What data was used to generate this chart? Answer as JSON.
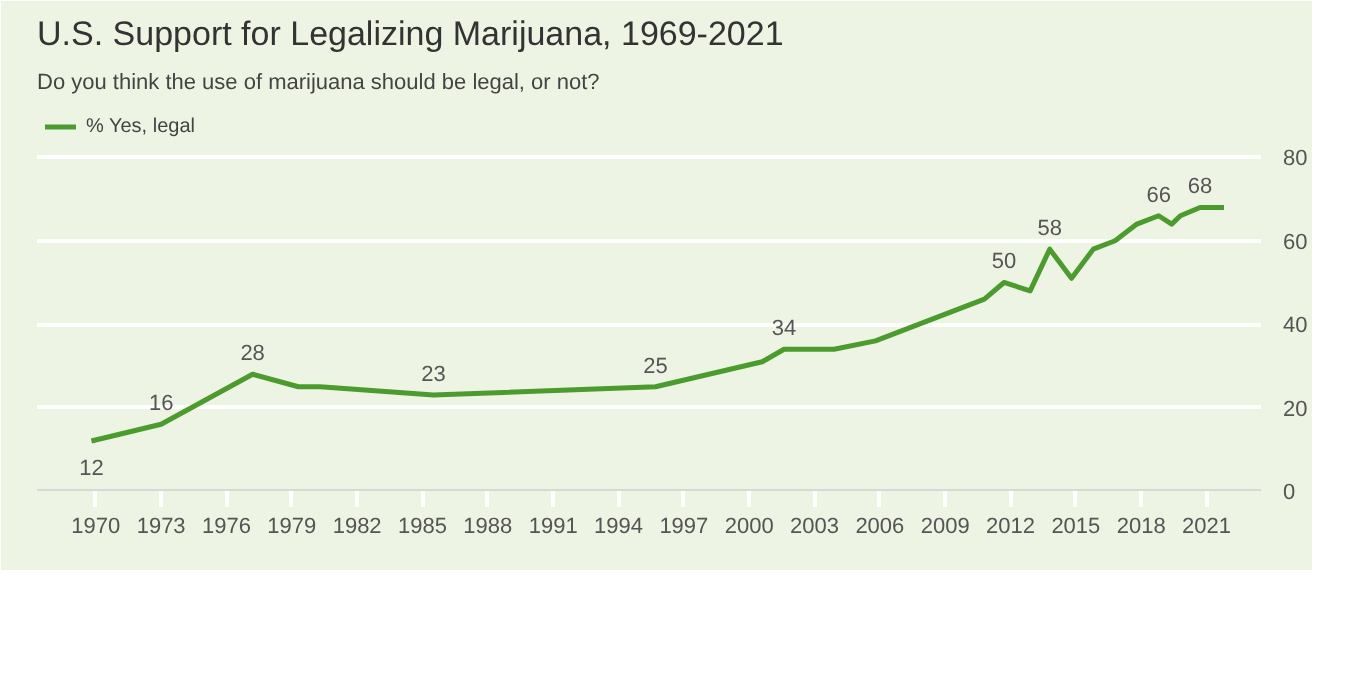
{
  "chart_data": {
    "type": "line",
    "title": "U.S. Support for Legalizing Marijuana, 1969-2021",
    "subtitle": "Do you think the use of marijuana should be legal, or not?",
    "x": [
      1969.8,
      1973.0,
      1977.2,
      1979.3,
      1980.3,
      1985.5,
      1995.7,
      2000.6,
      2001.6,
      2003.9,
      2005.8,
      2010.8,
      2011.7,
      2012.9,
      2013.8,
      2014.8,
      2015.8,
      2016.8,
      2017.8,
      2018.8,
      2019.4,
      2019.8,
      2020.7,
      2021.8
    ],
    "series": [
      {
        "name": "% Yes, legal",
        "color": "#4b9b2e",
        "values": [
          12,
          16,
          28,
          25,
          25,
          23,
          25,
          31,
          34,
          34,
          36,
          46,
          50,
          48,
          58,
          51,
          58,
          60,
          64,
          66,
          64,
          66,
          68,
          68
        ],
        "value_labels": [
          "12",
          "16",
          "28",
          null,
          null,
          "23",
          "25",
          null,
          "34",
          null,
          null,
          null,
          "50",
          null,
          "58",
          null,
          null,
          null,
          null,
          "66",
          null,
          null,
          "68",
          null
        ]
      }
    ],
    "xlim": [
      1967.3,
      2023.5
    ],
    "xticks": [
      1970,
      1973,
      1976,
      1979,
      1982,
      1985,
      1988,
      1991,
      1994,
      1997,
      2000,
      2003,
      2006,
      2009,
      2012,
      2015,
      2018,
      2021
    ],
    "ylim": [
      0,
      94
    ],
    "yticks": [
      0,
      20,
      40,
      60,
      80
    ],
    "grid": "y",
    "legend": "top left",
    "marker": "none",
    "line_style": "solid"
  }
}
